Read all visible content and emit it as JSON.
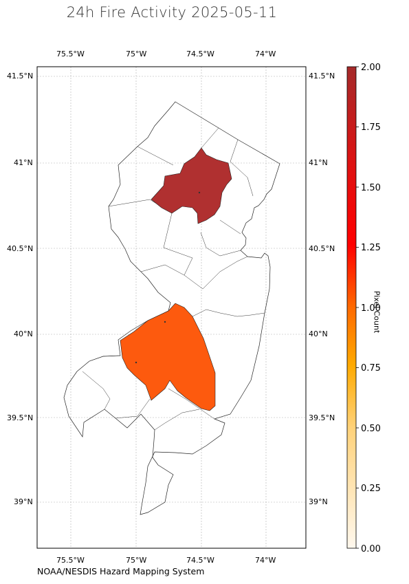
{
  "title": "24h Fire Activity 2025-05-11",
  "credit": "NOAA/NESDIS Hazard Mapping System",
  "lon_ticks": [
    "75.5°W",
    "75°W",
    "74.5°W",
    "74°W"
  ],
  "lat_ticks": [
    "41.5°N",
    "41°N",
    "40.5°N",
    "40°N",
    "39.5°N",
    "39°N"
  ],
  "colorbar": {
    "label": "Pixel Count",
    "ticks": [
      "0.00",
      "0.25",
      "0.50",
      "0.75",
      "1.00",
      "1.25",
      "1.50",
      "1.75",
      "2.00"
    ],
    "min": 0,
    "max": 2
  },
  "fire_counties": [
    {
      "region": "north",
      "pixel_count": 2,
      "color": "#b03030"
    },
    {
      "region": "south",
      "pixel_count": 1,
      "color": "#fd5a0e"
    }
  ],
  "colors": {
    "frame": "#000000",
    "grid": "#b0b0b0",
    "border": "#222222"
  }
}
